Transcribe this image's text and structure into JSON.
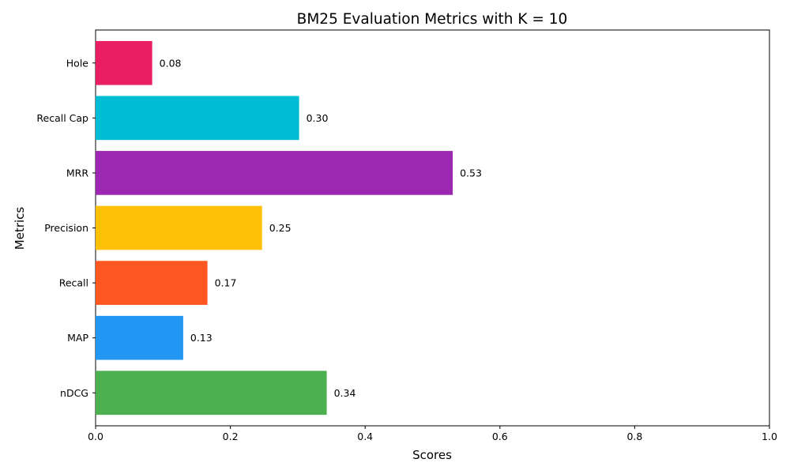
{
  "chart_data": {
    "type": "bar",
    "orientation": "horizontal",
    "title": "BM25 Evaluation Metrics with K = 10",
    "xlabel": "Scores",
    "ylabel": "Metrics",
    "xlim": [
      0,
      1
    ],
    "xticks": [
      "0.0",
      "0.2",
      "0.4",
      "0.6",
      "0.8",
      "1.0"
    ],
    "grid": false,
    "categories": [
      "nDCG",
      "MAP",
      "Recall",
      "Precision",
      "MRR",
      "Recall Cap",
      "Hole"
    ],
    "values": [
      0.343,
      0.13,
      0.166,
      0.247,
      0.53,
      0.302,
      0.084
    ],
    "value_labels": [
      "0.34",
      "0.13",
      "0.17",
      "0.25",
      "0.53",
      "0.30",
      "0.08"
    ],
    "colors": [
      "#4caf50",
      "#2196f3",
      "#ff5722",
      "#ffc107",
      "#9c27b0",
      "#00bcd4",
      "#e91e63"
    ]
  }
}
